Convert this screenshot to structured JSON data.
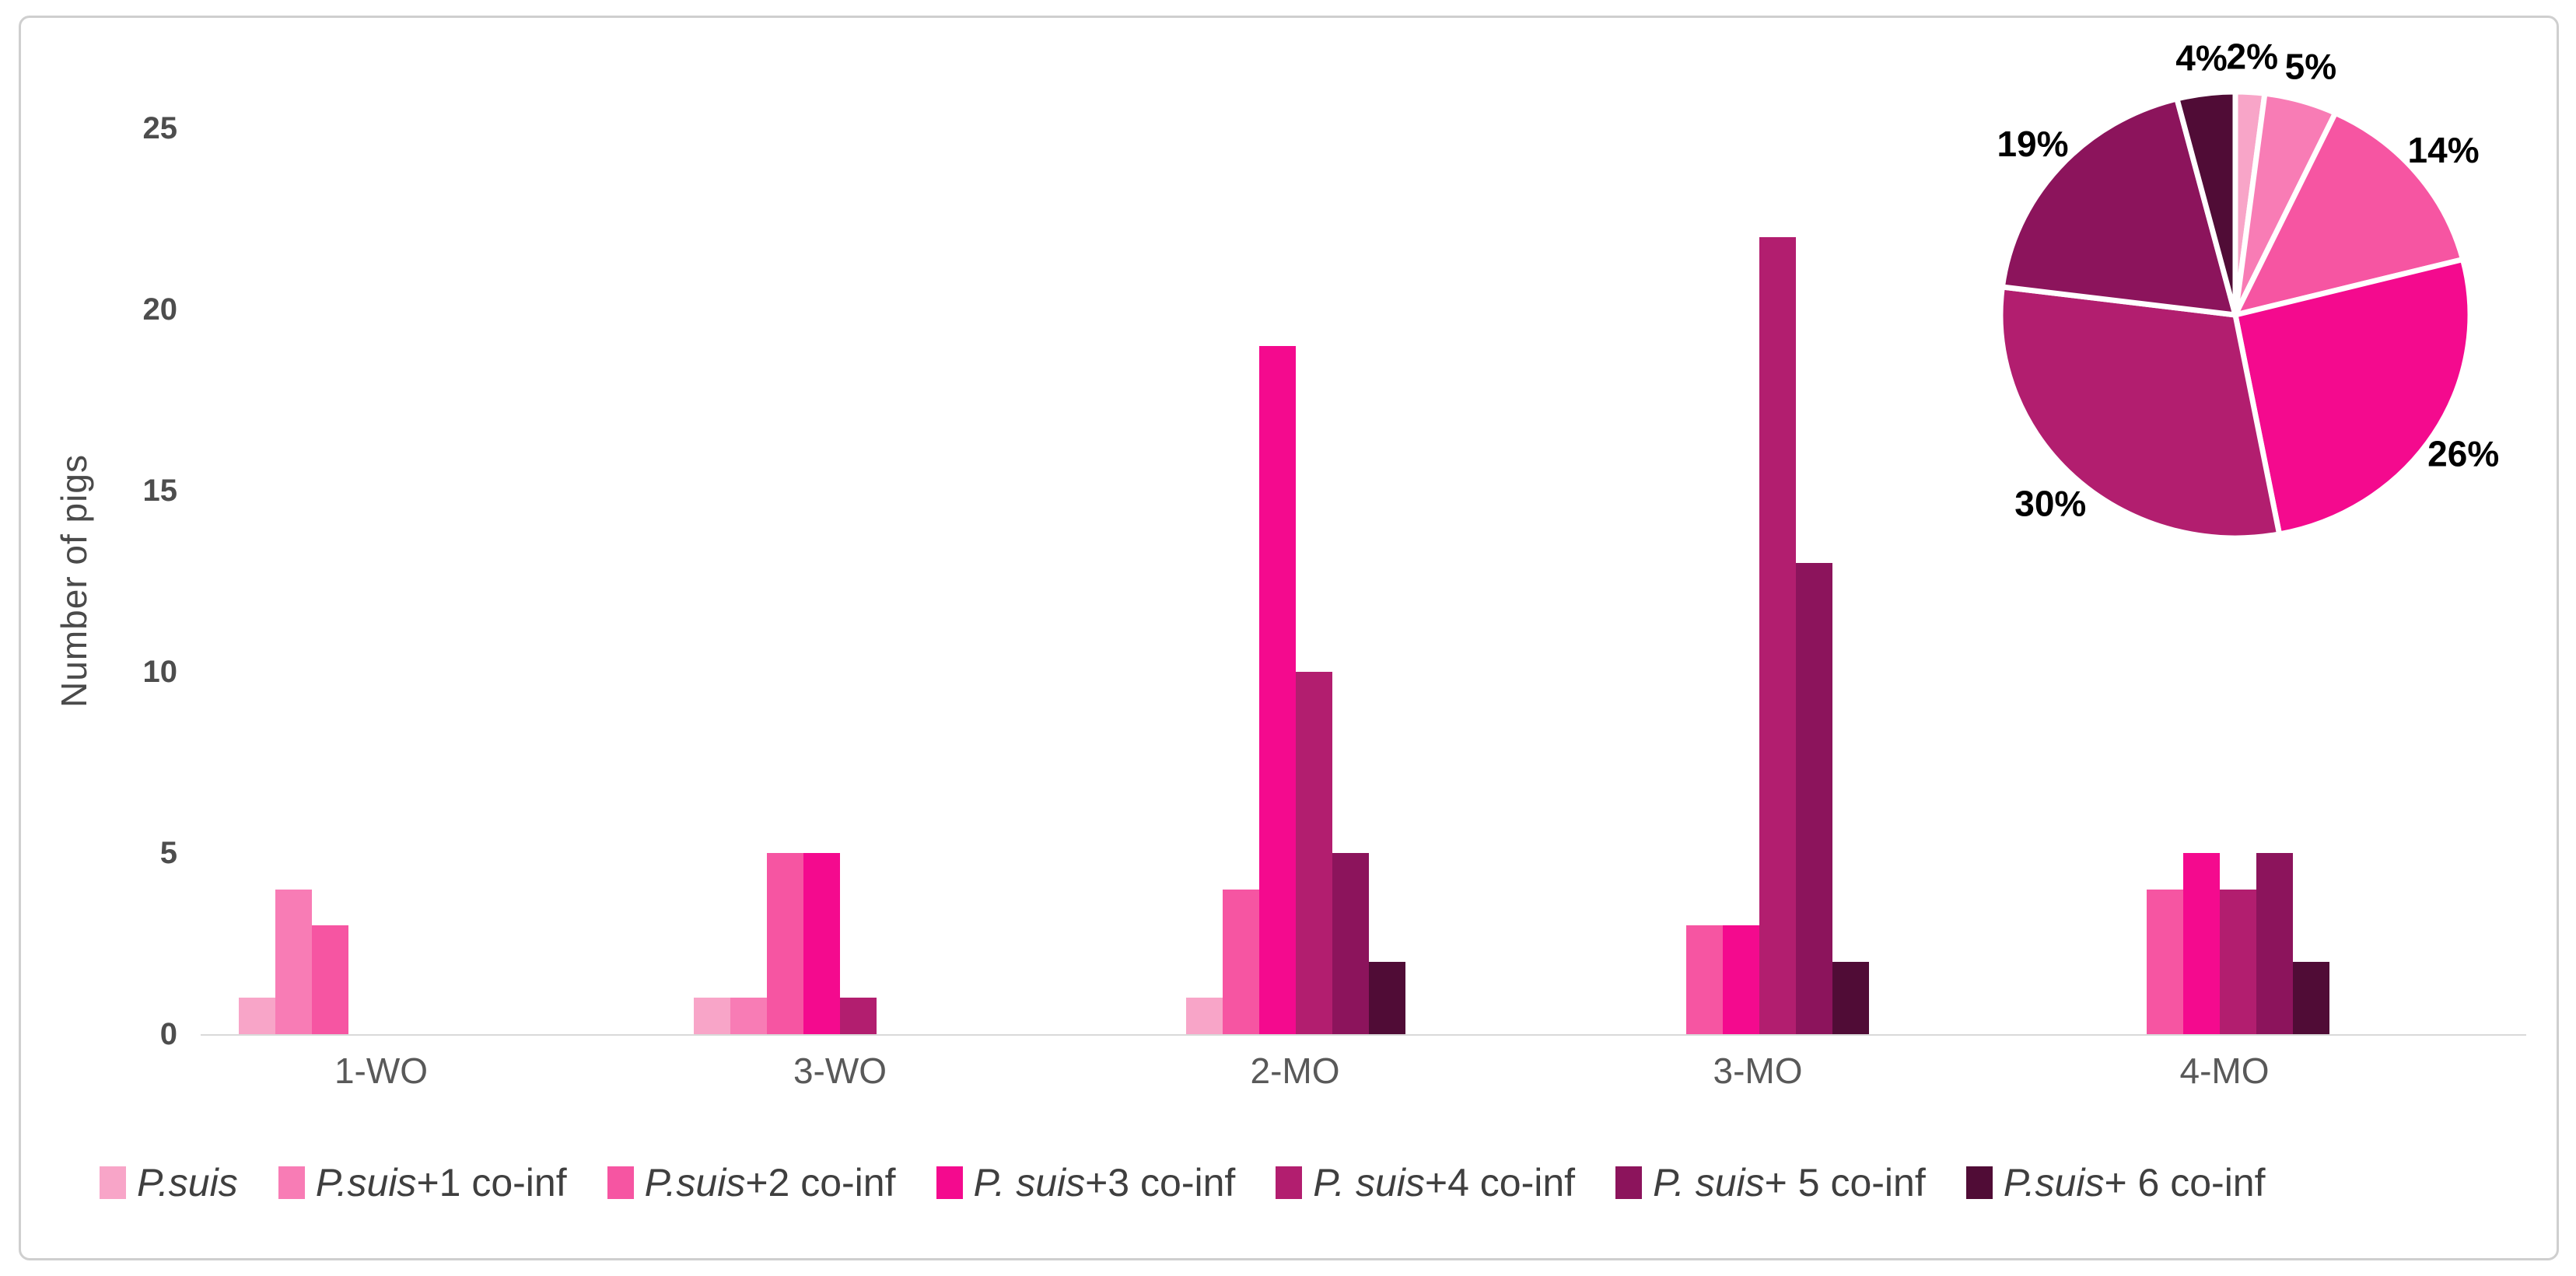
{
  "figure": {
    "y_axis_label": "Number of pigs",
    "background": "#FFFFFF",
    "border_color": "#CFCFCF",
    "axis_tick_color": "#4D4D4D",
    "category_label_color": "#595959",
    "legend_text_color": "#3F3F3F",
    "baseline_color": "#D9D9D9"
  },
  "legend": {
    "items": [
      {
        "italic": "P.suis",
        "rest": ""
      },
      {
        "italic": "P.suis",
        "rest": "+1 co-inf"
      },
      {
        "italic": "P.suis",
        "rest": "+2 co-inf"
      },
      {
        "italic": "P. suis",
        "rest": "+3 co-inf"
      },
      {
        "italic": "P. suis",
        "rest": "+4 co-inf"
      },
      {
        "italic": "P. suis",
        "rest": "+ 5 co-inf"
      },
      {
        "italic": "P.suis",
        "rest": "+ 6 co-inf"
      }
    ]
  },
  "chart_data": [
    {
      "type": "bar",
      "title": "",
      "xlabel": "",
      "ylabel": "Number of pigs",
      "ylim": [
        0,
        25
      ],
      "yticks": [
        0,
        5,
        10,
        15,
        20,
        25
      ],
      "grid": false,
      "legend_position": "bottom",
      "categories": [
        "1-WO",
        "3-WO",
        "2-MO",
        "3-MO",
        "4-MO"
      ],
      "series": [
        {
          "name": "P.suis",
          "color": "#F8A5C8",
          "values": [
            1,
            1,
            1,
            0,
            0
          ]
        },
        {
          "name": "P.suis+1 co-inf",
          "color": "#F87CB5",
          "values": [
            4,
            1,
            0,
            0,
            0
          ]
        },
        {
          "name": "P.suis+2 co-inf",
          "color": "#F655A2",
          "values": [
            3,
            5,
            4,
            3,
            4
          ]
        },
        {
          "name": "P. suis+3 co-inf",
          "color": "#F40A8E",
          "values": [
            0,
            5,
            19,
            3,
            5
          ]
        },
        {
          "name": "P. suis+4 co-inf",
          "color": "#B21E6F",
          "values": [
            0,
            1,
            10,
            22,
            4
          ]
        },
        {
          "name": "P. suis+ 5 co-inf",
          "color": "#8C145C",
          "values": [
            0,
            0,
            5,
            13,
            5
          ]
        },
        {
          "name": "P.suis+ 6 co-inf",
          "color": "#500C36",
          "values": [
            0,
            0,
            2,
            2,
            2
          ]
        }
      ]
    },
    {
      "type": "pie",
      "labels": [
        "P.suis",
        "P.suis+1 co-inf",
        "P.suis+2 co-inf",
        "P. suis+3 co-inf",
        "P. suis+4 co-inf",
        "P. suis+ 5 co-inf",
        "P.suis+ 6 co-inf"
      ],
      "values": [
        2,
        5,
        14,
        26,
        30,
        19,
        4
      ],
      "slice_labels": [
        "2%",
        "5%",
        "14%",
        "26%",
        "30%",
        "19%",
        "4%"
      ],
      "colors": [
        "#F8A5C8",
        "#F87CB5",
        "#F655A2",
        "#F40A8E",
        "#B21E6F",
        "#8C145C",
        "#500C36"
      ],
      "start_angle_deg": 0,
      "direction": "clockwise",
      "label_position": "outside",
      "slice_border_color": "#FFFFFF"
    }
  ]
}
